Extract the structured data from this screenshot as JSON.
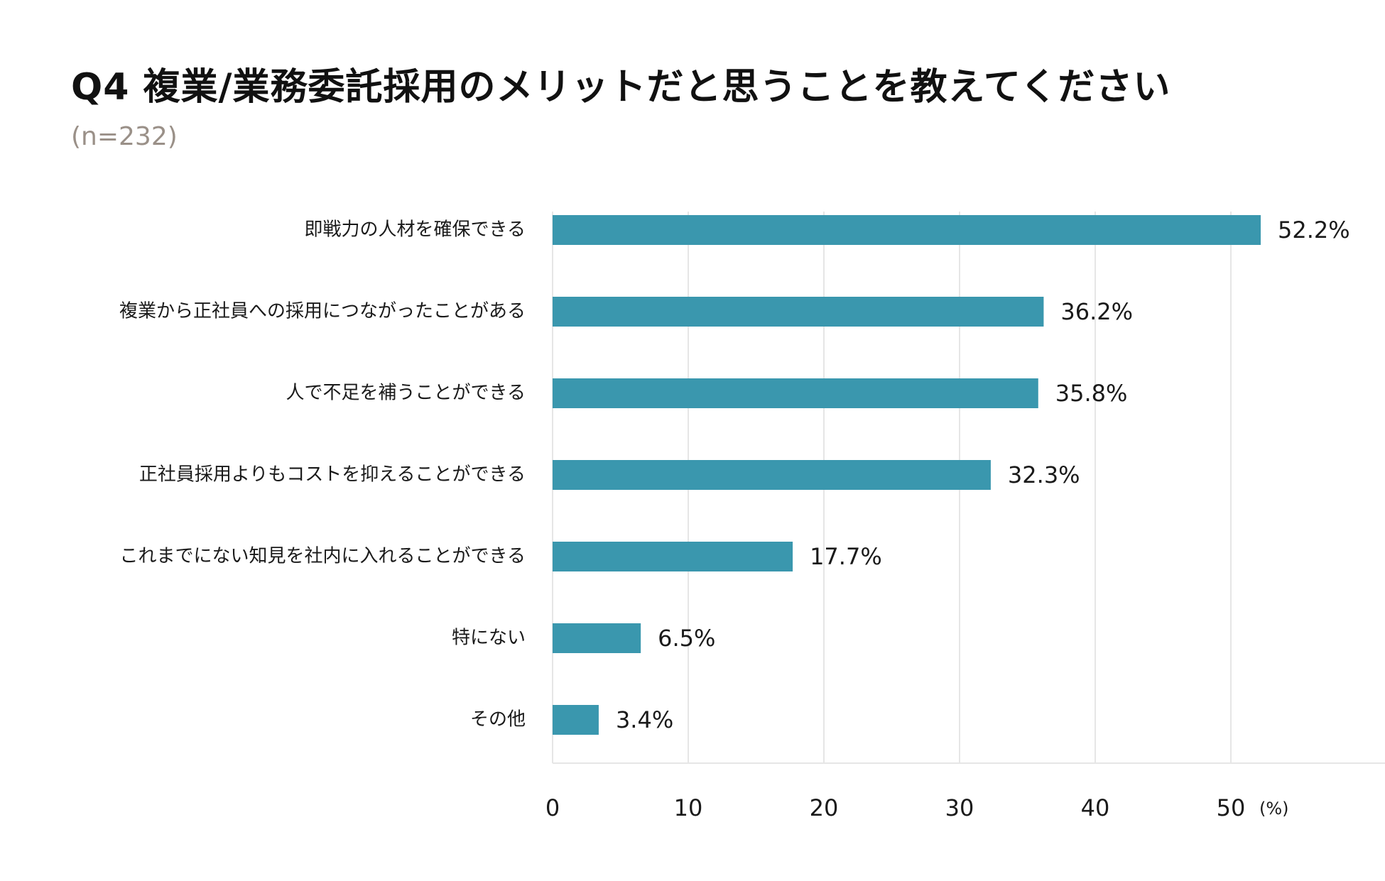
{
  "chart_data": {
    "type": "bar",
    "orientation": "horizontal",
    "title": "Q4 複業/業務委託採用のメリットだと思うことを教えてください",
    "subtitle": "(n=232)",
    "categories": [
      "即戦力の人材を確保できる",
      "複業から正社員への採用につながったことがある",
      "人で不足を補うことができる",
      "正社員採用よりもコストを抑えることができる",
      "これまでにない知見を社内に入れることができる",
      "特にない",
      "その他"
    ],
    "values": [
      52.2,
      36.2,
      35.8,
      32.3,
      17.7,
      6.5,
      3.4
    ],
    "value_labels": [
      "52.2%",
      "36.2%",
      "35.8%",
      "32.3%",
      "17.7%",
      "6.5%",
      "3.4%"
    ],
    "x_ticks": [
      "0",
      "10",
      "20",
      "30",
      "40",
      "50"
    ],
    "x_tick_values": [
      0,
      10,
      20,
      30,
      40,
      50
    ],
    "x_unit": "(%)",
    "xlim": [
      0,
      61
    ],
    "grid": true,
    "bar_color": "#3a97ae",
    "grid_color": "#e6e6e6"
  }
}
